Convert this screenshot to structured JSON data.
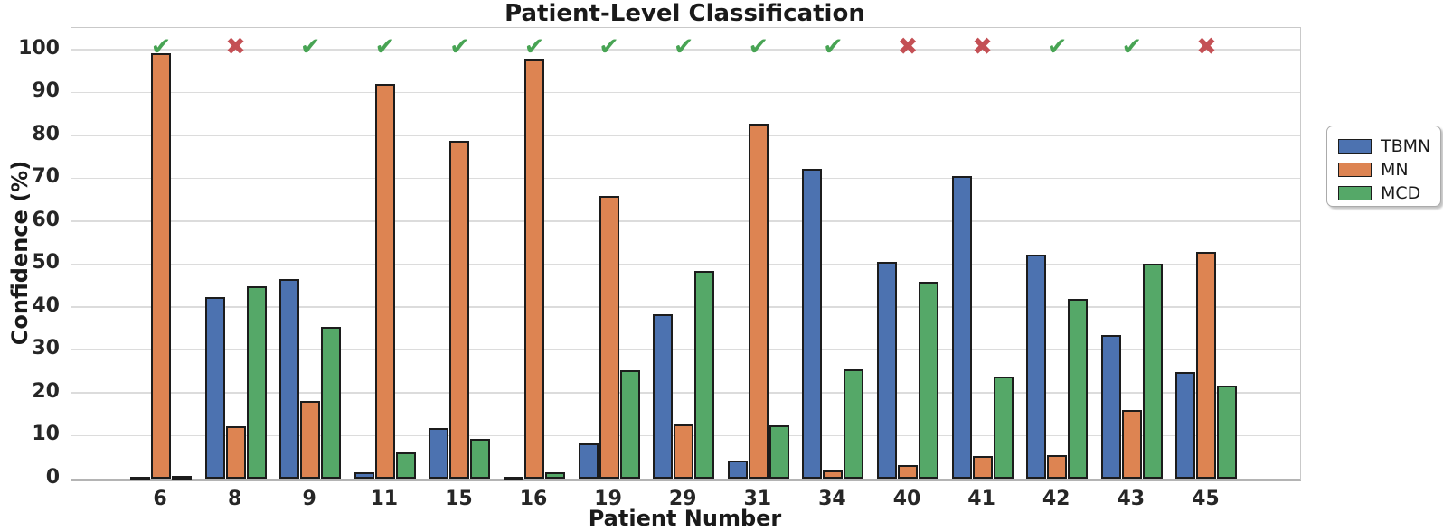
{
  "chart_data": {
    "type": "bar",
    "title": "Patient-Level Classification",
    "xlabel": "Patient Number",
    "ylabel": "Confidence (%)",
    "ylim": [
      0,
      105
    ],
    "yticks": [
      0,
      10,
      20,
      30,
      40,
      50,
      60,
      70,
      80,
      90,
      100
    ],
    "grid": true,
    "legend_position": "right of plot, upper",
    "categories": [
      "6",
      "8",
      "9",
      "11",
      "15",
      "16",
      "19",
      "29",
      "31",
      "34",
      "40",
      "41",
      "42",
      "43",
      "45"
    ],
    "series": [
      {
        "name": "TBMN",
        "color": "#4C72B0",
        "values": [
          0.3,
          42.3,
          46.5,
          1.5,
          11.8,
          0.4,
          8.3,
          38.3,
          4.3,
          72.2,
          50.4,
          70.4,
          52.1,
          33.5,
          24.8
        ]
      },
      {
        "name": "MN",
        "color": "#DD8452",
        "values": [
          99.2,
          12.3,
          18.2,
          91.9,
          78.7,
          97.9,
          65.8,
          12.6,
          82.8,
          1.9,
          3.1,
          5.2,
          5.4,
          15.9,
          52.9
        ]
      },
      {
        "name": "MCD",
        "color": "#55A868",
        "values": [
          0.6,
          44.9,
          35.3,
          6.2,
          9.2,
          1.4,
          25.2,
          48.5,
          12.4,
          25.5,
          45.9,
          23.8,
          41.8,
          50.1,
          21.6
        ]
      }
    ],
    "markers": {
      "description": "correct/incorrect prediction marks plotted at the 100% line above each patient group",
      "correct_symbol": "✔",
      "incorrect_symbol": "✖",
      "correct_color": "#48A454",
      "incorrect_color": "#C45055",
      "per_category": [
        "correct",
        "incorrect",
        "correct",
        "correct",
        "correct",
        "correct",
        "correct",
        "correct",
        "correct",
        "correct",
        "incorrect",
        "incorrect",
        "correct",
        "correct",
        "incorrect"
      ]
    }
  },
  "legend": {
    "items": [
      {
        "label": "TBMN",
        "color": "#4C72B0"
      },
      {
        "label": "MN",
        "color": "#DD8452"
      },
      {
        "label": "MCD",
        "color": "#55A868"
      }
    ]
  }
}
